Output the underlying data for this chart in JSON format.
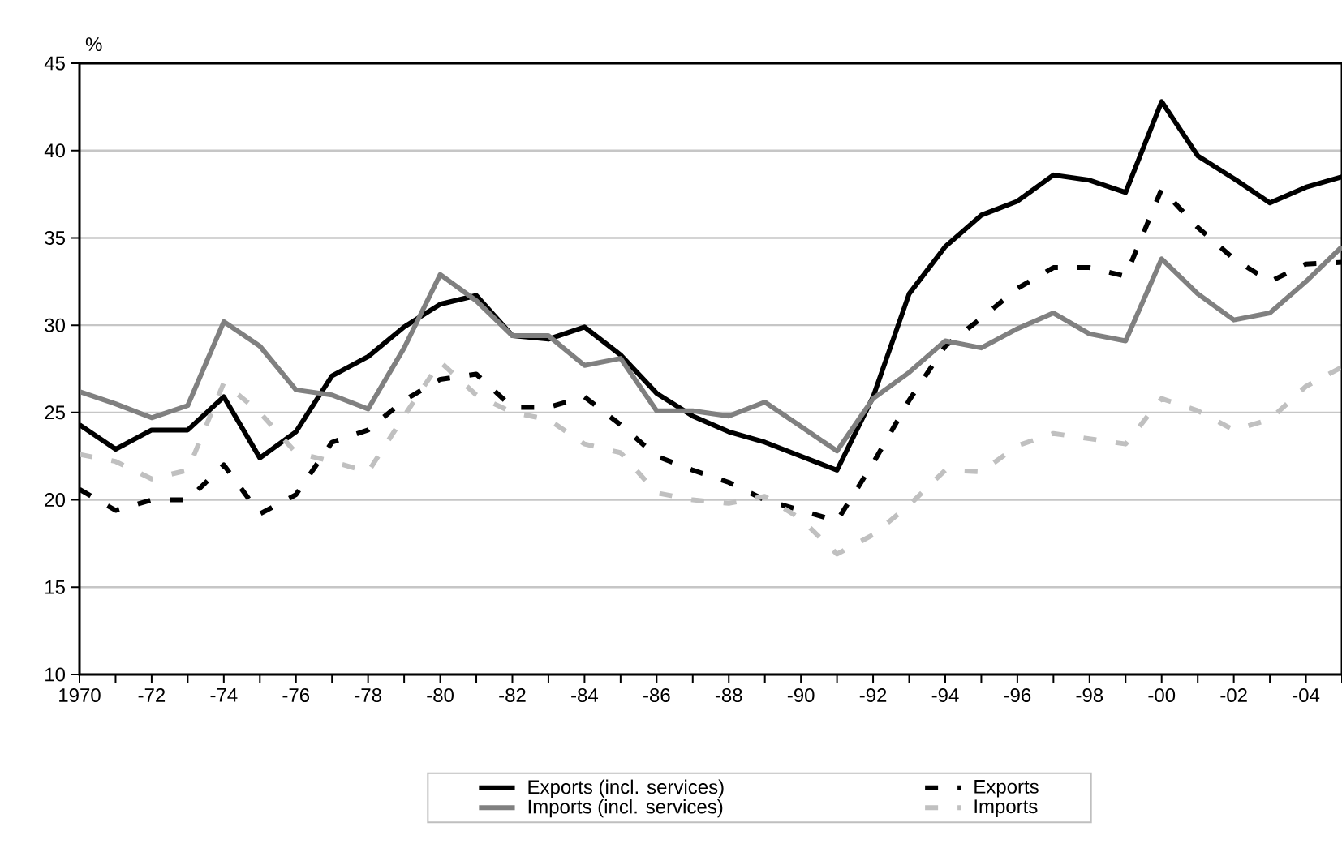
{
  "chart_data": {
    "type": "line",
    "ylabel": "%",
    "categories": [
      "1970",
      null,
      "-72",
      null,
      "-74",
      null,
      "-76",
      null,
      "-78",
      null,
      "-80",
      null,
      "-82",
      null,
      "-84",
      null,
      "-86",
      null,
      "-88",
      null,
      "-90",
      null,
      "-92",
      null,
      "-94",
      null,
      "-96",
      null,
      "-98",
      null,
      "-00",
      null,
      "-02",
      null,
      "-04",
      null
    ],
    "series": [
      {
        "name": "Exports (incl. services)",
        "color": "#000000",
        "line_style": "solid",
        "values": [
          24.3,
          22.9,
          24.0,
          24.0,
          25.9,
          22.4,
          23.9,
          27.1,
          28.2,
          29.9,
          31.2,
          31.7,
          29.4,
          29.2,
          29.9,
          28.3,
          26.1,
          24.8,
          23.9,
          23.3,
          22.5,
          21.7,
          25.9,
          31.8,
          34.5,
          36.3,
          37.1,
          38.6,
          38.3,
          37.6,
          42.8,
          39.7,
          38.4,
          37.0,
          37.9,
          38.5
        ]
      },
      {
        "name": "Exports",
        "color": "#000000",
        "line_style": "dashed",
        "values": [
          20.6,
          19.4,
          20.0,
          20.0,
          22.0,
          19.2,
          20.3,
          23.3,
          24.0,
          25.7,
          26.9,
          27.2,
          25.3,
          25.3,
          25.9,
          24.3,
          22.5,
          21.7,
          21.0,
          20.0,
          19.4,
          18.8,
          22.1,
          25.7,
          28.8,
          30.4,
          32.1,
          33.3,
          33.3,
          32.8,
          37.8,
          35.6,
          33.8,
          32.5,
          33.5,
          33.6
        ]
      },
      {
        "name": "Imports (incl. services)",
        "color": "#808080",
        "line_style": "solid",
        "values": [
          26.2,
          25.5,
          24.7,
          25.4,
          30.2,
          28.8,
          26.3,
          26.0,
          25.2,
          28.7,
          32.9,
          31.4,
          29.4,
          29.4,
          27.7,
          28.1,
          25.1,
          25.1,
          24.8,
          25.6,
          24.2,
          22.8,
          25.8,
          27.3,
          29.1,
          28.7,
          29.8,
          30.7,
          29.5,
          29.1,
          33.8,
          31.8,
          30.3,
          30.7,
          32.5,
          34.5
        ]
      },
      {
        "name": "Imports",
        "color": "#c0c0c0",
        "line_style": "dashed",
        "values": [
          22.6,
          22.2,
          21.2,
          21.7,
          26.7,
          25.0,
          22.7,
          22.2,
          21.6,
          24.8,
          27.9,
          26.0,
          25.0,
          24.6,
          23.2,
          22.7,
          20.4,
          20.0,
          19.8,
          20.2,
          18.9,
          16.9,
          18.0,
          19.7,
          21.7,
          21.6,
          23.1,
          23.8,
          23.5,
          23.2,
          25.8,
          25.1,
          24.0,
          24.6,
          26.5,
          27.6
        ]
      }
    ],
    "ylim": [
      10,
      45
    ],
    "yticks": [
      10,
      15,
      20,
      25,
      30,
      35,
      40,
      45
    ],
    "grid": "y",
    "legend": "bottom",
    "marker": "none"
  }
}
